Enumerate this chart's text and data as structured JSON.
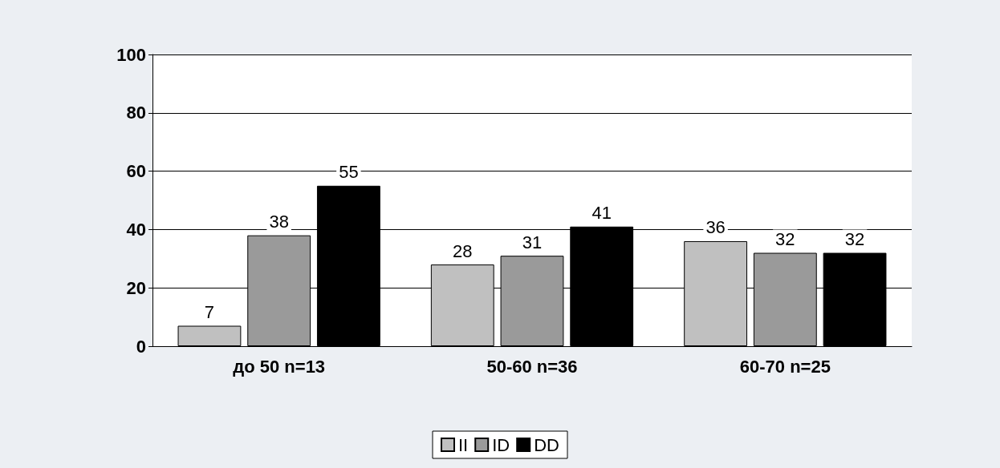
{
  "chart_data": {
    "type": "bar",
    "categories": [
      "до 50 n=13",
      "50-60 n=36",
      "60-70 n=25"
    ],
    "series": [
      {
        "name": "II",
        "color": "#c0c0c0",
        "values": [
          7,
          28,
          36
        ]
      },
      {
        "name": "ID",
        "color": "#9a9a9a",
        "values": [
          38,
          31,
          32
        ]
      },
      {
        "name": "DD",
        "color": "#000000",
        "values": [
          55,
          41,
          32
        ]
      }
    ],
    "ylim": [
      0,
      100
    ],
    "yticks": [
      0,
      20,
      40,
      60,
      80,
      100
    ],
    "grid": "y",
    "legend": "bottom",
    "data_labels": true
  }
}
